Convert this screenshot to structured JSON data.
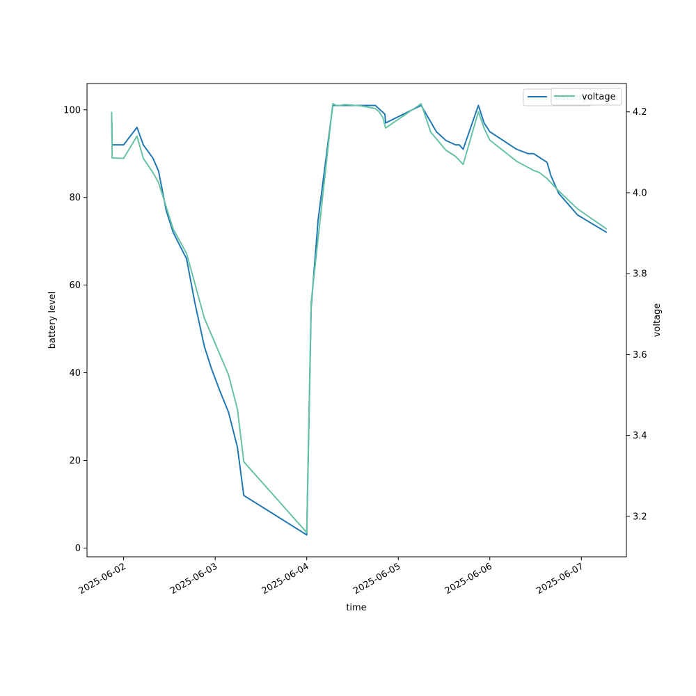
{
  "chart_data": {
    "type": "line",
    "xlabel": "time",
    "ylabel_left": "battery level",
    "ylabel_right": "voltage",
    "xlim": [
      "2025-06-01 14:24",
      "2025-06-07 11:48"
    ],
    "ylim_left": [
      -2,
      106
    ],
    "ylim_right": [
      3.1,
      4.27
    ],
    "x_ticks": [
      "2025-06-02",
      "2025-06-03",
      "2025-06-04",
      "2025-06-05",
      "2025-06-06",
      "2025-06-07"
    ],
    "y_ticks_left": [
      0,
      20,
      40,
      60,
      80,
      100
    ],
    "y_ticks_right": [
      3.2,
      3.4,
      3.6,
      3.8,
      4.0,
      4.2
    ],
    "legend_position": "top-right",
    "series": [
      {
        "name": "battery",
        "axis": "left",
        "color": "#1f77b4",
        "points": [
          [
            "2025-06-01 20:52",
            99
          ],
          [
            "2025-06-01 21:00",
            92
          ],
          [
            "2025-06-02 00:00",
            92
          ],
          [
            "2025-06-02 03:30",
            96
          ],
          [
            "2025-06-02 05:10",
            92
          ],
          [
            "2025-06-02 07:40",
            89
          ],
          [
            "2025-06-02 09:10",
            86
          ],
          [
            "2025-06-02 11:10",
            77
          ],
          [
            "2025-06-02 13:00",
            72
          ],
          [
            "2025-06-02 16:30",
            66
          ],
          [
            "2025-06-02 18:40",
            56
          ],
          [
            "2025-06-02 21:10",
            46
          ],
          [
            "2025-06-02 23:00",
            41
          ],
          [
            "2025-06-03 01:10",
            36
          ],
          [
            "2025-06-03 03:30",
            31
          ],
          [
            "2025-06-03 05:50",
            23
          ],
          [
            "2025-06-03 07:30",
            12
          ],
          [
            "2025-06-04 00:00",
            3
          ],
          [
            "2025-06-04 01:10",
            55
          ],
          [
            "2025-06-04 03:00",
            75
          ],
          [
            "2025-06-04 06:50",
            101
          ],
          [
            "2025-06-04 18:00",
            101
          ],
          [
            "2025-06-04 20:30",
            99
          ],
          [
            "2025-06-04 20:40",
            97
          ],
          [
            "2025-06-05 06:00",
            101
          ],
          [
            "2025-06-05 10:00",
            95
          ],
          [
            "2025-06-05 12:30",
            93
          ],
          [
            "2025-06-05 15:00",
            92
          ],
          [
            "2025-06-05 16:00",
            92
          ],
          [
            "2025-06-05 17:00",
            91
          ],
          [
            "2025-06-05 21:00",
            101
          ],
          [
            "2025-06-05 22:30",
            97
          ],
          [
            "2025-06-06 00:00",
            95
          ],
          [
            "2025-06-06 07:00",
            91
          ],
          [
            "2025-06-06 10:00",
            90
          ],
          [
            "2025-06-06 11:30",
            90
          ],
          [
            "2025-06-06 15:00",
            88
          ],
          [
            "2025-06-06 16:00",
            85
          ],
          [
            "2025-06-06 18:00",
            81
          ],
          [
            "2025-06-06 23:00",
            76
          ],
          [
            "2025-06-07 06:40",
            72
          ]
        ]
      },
      {
        "name": "voltage",
        "axis": "right",
        "color": "#66c2a5",
        "points": [
          [
            "2025-06-01 20:52",
            4.2
          ],
          [
            "2025-06-01 21:00",
            4.086
          ],
          [
            "2025-06-02 00:00",
            4.085
          ],
          [
            "2025-06-02 03:30",
            4.14
          ],
          [
            "2025-06-02 05:10",
            4.085
          ],
          [
            "2025-06-02 07:40",
            4.05
          ],
          [
            "2025-06-02 09:10",
            4.025
          ],
          [
            "2025-06-02 13:00",
            3.91
          ],
          [
            "2025-06-02 16:30",
            3.85
          ],
          [
            "2025-06-02 21:10",
            3.69
          ],
          [
            "2025-06-03 03:30",
            3.55
          ],
          [
            "2025-06-03 05:50",
            3.465
          ],
          [
            "2025-06-03 07:30",
            3.335
          ],
          [
            "2025-06-04 00:00",
            3.16
          ],
          [
            "2025-06-04 01:10",
            3.73
          ],
          [
            "2025-06-04 06:50",
            4.22
          ],
          [
            "2025-06-04 08:00",
            4.215
          ],
          [
            "2025-06-04 10:00",
            4.218
          ],
          [
            "2025-06-04 14:00",
            4.215
          ],
          [
            "2025-06-04 17:00",
            4.21
          ],
          [
            "2025-06-04 18:00",
            4.208
          ],
          [
            "2025-06-04 19:00",
            4.2
          ],
          [
            "2025-06-04 20:00",
            4.185
          ],
          [
            "2025-06-04 20:40",
            4.16
          ],
          [
            "2025-06-05 06:00",
            4.22
          ],
          [
            "2025-06-05 08:30",
            4.15
          ],
          [
            "2025-06-05 12:30",
            4.105
          ],
          [
            "2025-06-05 15:00",
            4.09
          ],
          [
            "2025-06-05 17:00",
            4.07
          ],
          [
            "2025-06-05 21:00",
            4.2
          ],
          [
            "2025-06-05 22:30",
            4.16
          ],
          [
            "2025-06-06 00:00",
            4.13
          ],
          [
            "2025-06-06 07:00",
            4.078
          ],
          [
            "2025-06-06 11:30",
            4.055
          ],
          [
            "2025-06-06 13:00",
            4.05
          ],
          [
            "2025-06-06 15:00",
            4.035
          ],
          [
            "2025-06-06 18:00",
            4.005
          ],
          [
            "2025-06-06 23:00",
            3.96
          ],
          [
            "2025-06-07 06:40",
            3.91
          ]
        ]
      }
    ]
  },
  "legend": {
    "entries": [
      {
        "label": "battery",
        "color": "#1f77b4"
      },
      {
        "label": "voltage",
        "color": "#66c2a5"
      }
    ]
  }
}
